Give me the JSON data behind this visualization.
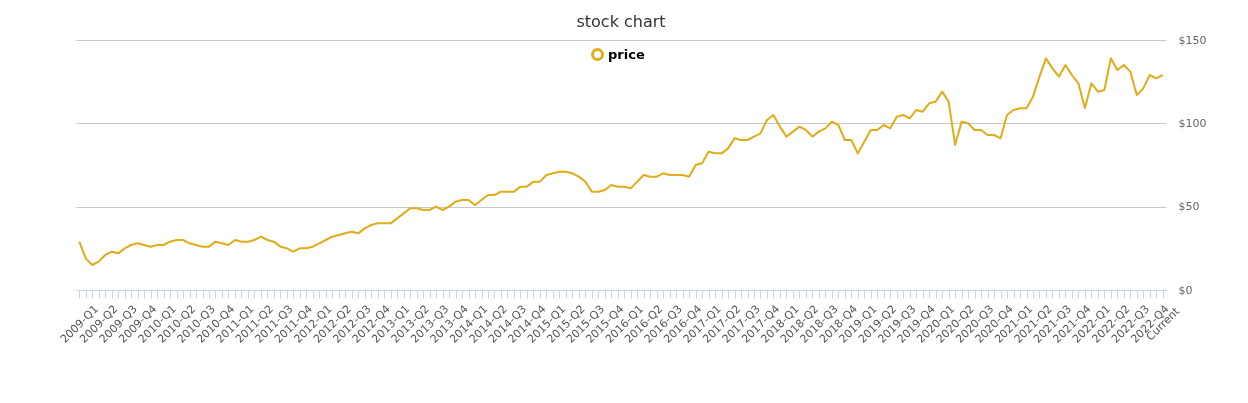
{
  "chart_data": {
    "type": "line",
    "title": "stock chart",
    "categories": [
      "2009-Q1",
      null,
      null,
      "2009-Q2",
      null,
      null,
      "2009-Q3",
      null,
      null,
      "2009-Q4",
      null,
      null,
      "2010-Q1",
      null,
      null,
      "2010-Q2",
      null,
      null,
      "2010-Q3",
      null,
      null,
      "2010-Q4",
      null,
      null,
      "2011-Q1",
      null,
      null,
      "2011-Q2",
      null,
      null,
      "2011-Q3",
      null,
      null,
      "2011-Q4",
      null,
      null,
      "2012-Q1",
      null,
      null,
      "2012-Q2",
      null,
      null,
      "2012-Q3",
      null,
      null,
      "2012-Q4",
      null,
      null,
      "2013-Q1",
      null,
      null,
      "2013-Q2",
      null,
      null,
      "2013-Q3",
      null,
      null,
      "2013-Q4",
      null,
      null,
      "2014-Q1",
      null,
      null,
      "2014-Q2",
      null,
      null,
      "2014-Q3",
      null,
      null,
      "2014-Q4",
      null,
      null,
      "2015-Q1",
      null,
      null,
      "2015-Q2",
      null,
      null,
      "2015-Q3",
      null,
      null,
      "2015-Q4",
      null,
      null,
      "2016-Q1",
      null,
      null,
      "2016-Q2",
      null,
      null,
      "2016-Q3",
      null,
      null,
      "2016-Q4",
      null,
      null,
      "2017-Q1",
      null,
      null,
      "2017-Q2",
      null,
      null,
      "2017-Q3",
      null,
      null,
      "2017-Q4",
      null,
      null,
      "2018-Q1",
      null,
      null,
      "2018-Q2",
      null,
      null,
      "2018-Q3",
      null,
      null,
      "2018-Q4",
      null,
      null,
      "2019-Q1",
      null,
      null,
      "2019-Q2",
      null,
      null,
      "2019-Q3",
      null,
      null,
      "2019-Q4",
      null,
      null,
      "2020-Q1",
      null,
      null,
      "2020-Q2",
      null,
      null,
      "2020-Q3",
      null,
      null,
      "2020-Q4",
      null,
      null,
      "2021-Q1",
      null,
      null,
      "2021-Q2",
      null,
      null,
      "2021-Q3",
      null,
      null,
      "2021-Q4",
      null,
      null,
      "2022-Q1",
      null,
      null,
      "2022-Q2",
      null,
      null,
      "2022-Q3",
      null,
      null,
      "2022-Q4",
      null,
      "Current"
    ],
    "series": [
      {
        "name": "price",
        "color": "#e0ac1a",
        "values": [
          29,
          19,
          15,
          17,
          21,
          23,
          22,
          25,
          27,
          28,
          27,
          26,
          27,
          27,
          29,
          30,
          30,
          28,
          27,
          26,
          26,
          29,
          28,
          27,
          30,
          29,
          29,
          30,
          32,
          30,
          29,
          26,
          25,
          23,
          25,
          25,
          26,
          28,
          30,
          32,
          33,
          34,
          35,
          34,
          37,
          39,
          40,
          40,
          40,
          43,
          46,
          49,
          49,
          48,
          48,
          50,
          48,
          50,
          53,
          54,
          54,
          51,
          54,
          57,
          57,
          59,
          59,
          59,
          62,
          62,
          65,
          65,
          69,
          70,
          71,
          71,
          70,
          68,
          65,
          59,
          59,
          60,
          63,
          62,
          62,
          61,
          65,
          69,
          68,
          68,
          70,
          69,
          69,
          69,
          68,
          75,
          76,
          83,
          82,
          82,
          85,
          91,
          90,
          90,
          92,
          94,
          102,
          105,
          98,
          92,
          95,
          98,
          96,
          92,
          95,
          97,
          101,
          99,
          90,
          90,
          82,
          89,
          96,
          96,
          99,
          97,
          104,
          105,
          103,
          108,
          107,
          112,
          113,
          119,
          113,
          87,
          101,
          100,
          96,
          96,
          93,
          93,
          91,
          105,
          108,
          109,
          109,
          116,
          128,
          139,
          133,
          128,
          135,
          129,
          124,
          109,
          124,
          119,
          120,
          139,
          132,
          135,
          131,
          117,
          121,
          129,
          127,
          129
        ]
      }
    ],
    "ylim": [
      0,
      150
    ],
    "yticks": [
      {
        "value": 0,
        "label": "$0"
      },
      {
        "value": 50,
        "label": "$50"
      },
      {
        "value": 100,
        "label": "$100"
      },
      {
        "value": 150,
        "label": "$150"
      }
    ],
    "grid": "y",
    "legend": "top",
    "marker": "none",
    "line_style": "solid"
  }
}
